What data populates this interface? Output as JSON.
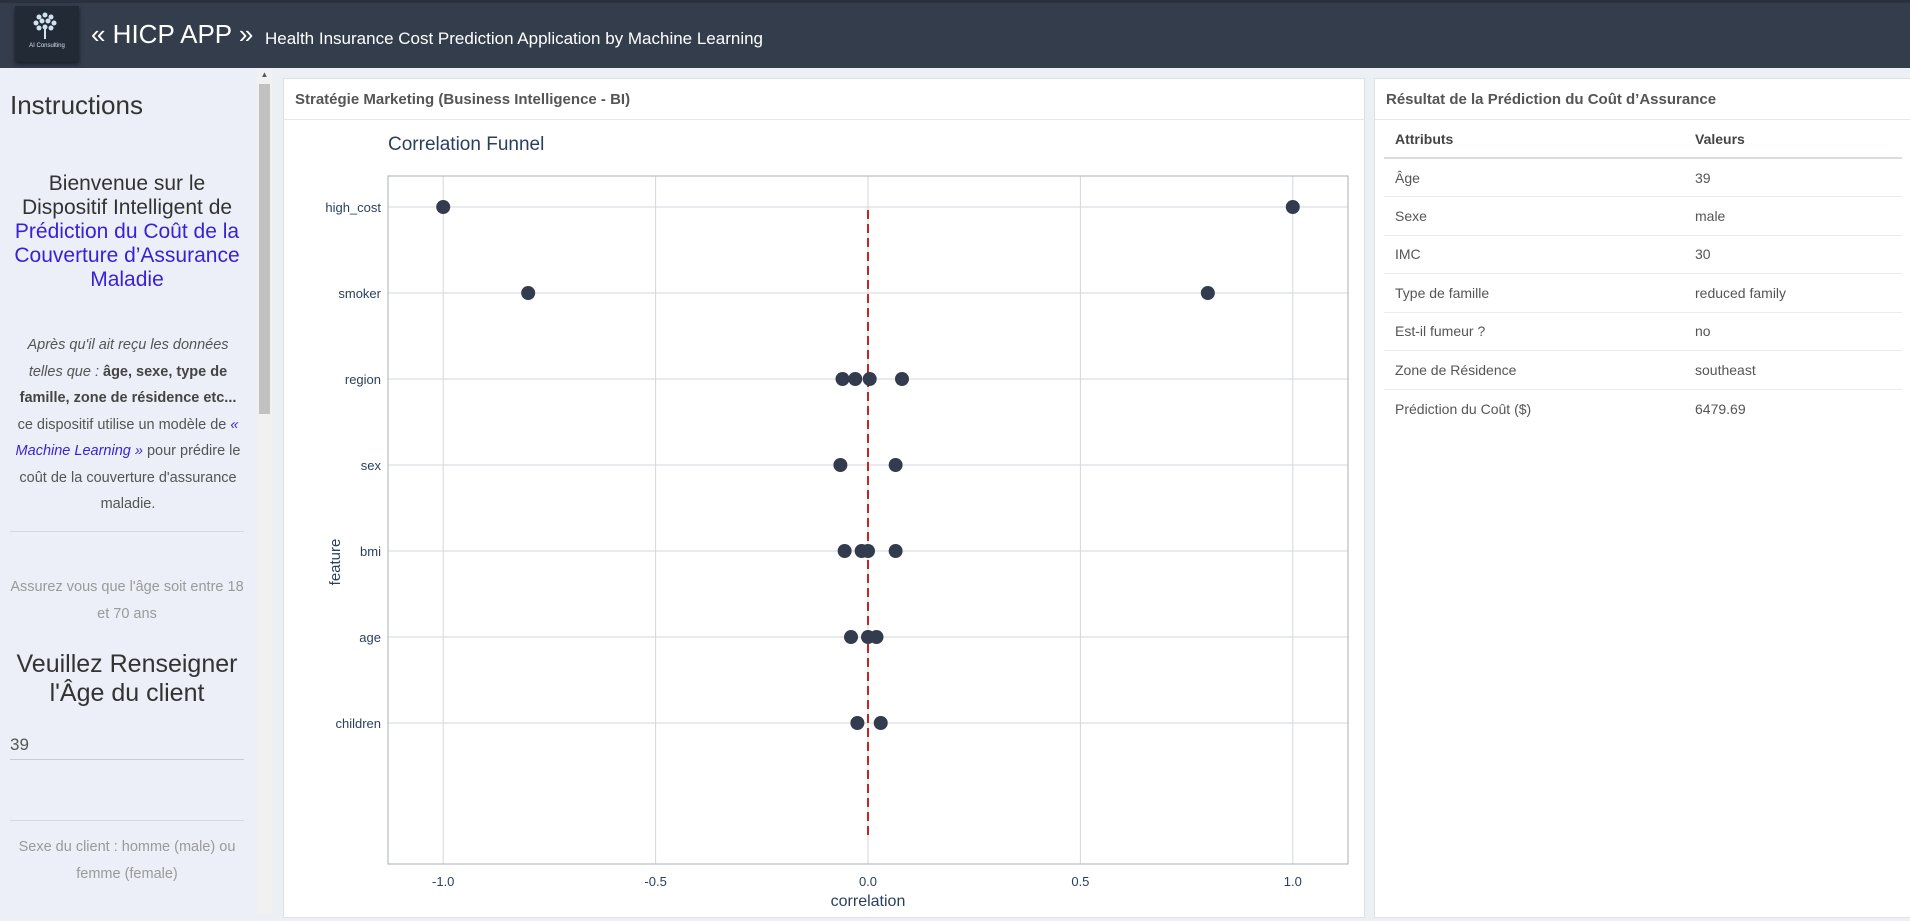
{
  "header": {
    "app_title": "« HICP APP »",
    "subtitle": "Health Insurance Cost Prediction Application by Machine Learning",
    "logo_text": "AI Consulting"
  },
  "sidebar": {
    "heading": "Instructions",
    "welcome_line1": "Bienvenue sur le Dispositif Intelligent de",
    "welcome_accent": "Prédiction du Coût de la Couverture d’Assurance Maladie",
    "desc_intro": "Après qu'il ait reçu les données telles que :",
    "desc_bold": "âge, sexe, type de famille, zone de résidence etc...",
    "desc_mid": "ce dispositif utilise un modèle de",
    "desc_ml": "« Machine Learning »",
    "desc_end": "pour prédire le coût de la couverture d'assurance maladie.",
    "age_note": "Assurez vous que l'âge soit entre 18 et 70 ans",
    "age_label": "Veuillez Renseigner l'Âge du client",
    "age_value": "39",
    "sex_note": "Sexe du client : homme (male) ou femme (female)"
  },
  "chart_panel": {
    "title": "Stratégie Marketing (Business Intelligence - BI)"
  },
  "chart_data": {
    "type": "scatter",
    "title": "Correlation Funnel",
    "xlabel": "correlation",
    "ylabel": "feature",
    "xlim": [
      -1.13,
      1.13
    ],
    "xticks": [
      -1.0,
      -0.5,
      0.0,
      0.5,
      1.0
    ],
    "xtick_labels": [
      "-1.0",
      "-0.5",
      "0.0",
      "0.5",
      "1.0"
    ],
    "categories": [
      "high_cost",
      "smoker",
      "region",
      "sex",
      "bmi",
      "age",
      "children"
    ],
    "reference_line": 0.0,
    "point_color": "#333c4f",
    "reference_color": "#cc2222",
    "points": [
      {
        "feature": "high_cost",
        "x": [
          -1.0,
          1.0
        ]
      },
      {
        "feature": "smoker",
        "x": [
          -0.8,
          0.8
        ]
      },
      {
        "feature": "region",
        "x": [
          -0.06,
          -0.03,
          0.004,
          0.08
        ]
      },
      {
        "feature": "sex",
        "x": [
          -0.065,
          0.065
        ]
      },
      {
        "feature": "bmi",
        "x": [
          -0.055,
          -0.015,
          0.0,
          0.065
        ]
      },
      {
        "feature": "age",
        "x": [
          -0.04,
          0.0,
          0.02
        ]
      },
      {
        "feature": "children",
        "x": [
          -0.025,
          0.03
        ]
      }
    ]
  },
  "result_panel": {
    "title": "Résultat de la Prédiction du Coût d’Assurance",
    "col_attr": "Attributs",
    "col_val": "Valeurs",
    "rows": [
      {
        "attr": "Âge",
        "val": "39"
      },
      {
        "attr": "Sexe",
        "val": "male"
      },
      {
        "attr": "IMC",
        "val": "30"
      },
      {
        "attr": "Type de famille",
        "val": "reduced family"
      },
      {
        "attr": "Est-il fumeur ?",
        "val": "no"
      },
      {
        "attr": "Zone de Résidence",
        "val": "southeast"
      },
      {
        "attr": "Prédiction du Coût ($)",
        "val": "6479.69"
      }
    ]
  }
}
